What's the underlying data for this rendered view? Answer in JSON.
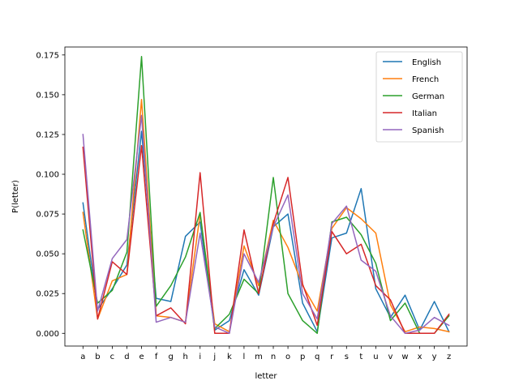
{
  "chart_data": {
    "type": "line",
    "title": "",
    "xlabel": "letter",
    "ylabel": "P(letter)",
    "categories": [
      "a",
      "b",
      "c",
      "d",
      "e",
      "f",
      "g",
      "h",
      "i",
      "j",
      "k",
      "l",
      "m",
      "n",
      "o",
      "p",
      "q",
      "r",
      "s",
      "t",
      "u",
      "v",
      "w",
      "x",
      "y",
      "z"
    ],
    "ylim": [
      -0.008,
      0.18
    ],
    "yticks": [
      0.0,
      0.025,
      0.05,
      0.075,
      0.1,
      0.125,
      0.15,
      0.175
    ],
    "ytick_labels": [
      "0.000",
      "0.025",
      "0.050",
      "0.075",
      "0.100",
      "0.125",
      "0.150",
      "0.175"
    ],
    "grid": false,
    "legend_position": "top-right",
    "series": [
      {
        "name": "English",
        "color": "#1f77b4",
        "values": [
          0.082,
          0.015,
          0.028,
          0.043,
          0.127,
          0.022,
          0.02,
          0.061,
          0.07,
          0.002,
          0.008,
          0.04,
          0.024,
          0.067,
          0.075,
          0.019,
          0.001,
          0.06,
          0.063,
          0.091,
          0.028,
          0.01,
          0.024,
          0.002,
          0.02,
          0.001
        ]
      },
      {
        "name": "French",
        "color": "#ff7f0e",
        "values": [
          0.076,
          0.009,
          0.033,
          0.037,
          0.147,
          0.011,
          0.01,
          0.007,
          0.075,
          0.006,
          0.001,
          0.055,
          0.03,
          0.071,
          0.054,
          0.03,
          0.014,
          0.066,
          0.079,
          0.072,
          0.063,
          0.018,
          0.001,
          0.004,
          0.003,
          0.001
        ]
      },
      {
        "name": "German",
        "color": "#2ca02c",
        "values": [
          0.065,
          0.019,
          0.027,
          0.051,
          0.174,
          0.017,
          0.03,
          0.048,
          0.076,
          0.003,
          0.012,
          0.034,
          0.025,
          0.098,
          0.025,
          0.008,
          0.0,
          0.07,
          0.073,
          0.062,
          0.044,
          0.008,
          0.019,
          0.0,
          0.0,
          0.011
        ]
      },
      {
        "name": "Italian",
        "color": "#d62728",
        "values": [
          0.117,
          0.009,
          0.045,
          0.037,
          0.118,
          0.011,
          0.016,
          0.006,
          0.101,
          0.0,
          0.0,
          0.065,
          0.025,
          0.069,
          0.098,
          0.031,
          0.005,
          0.064,
          0.05,
          0.056,
          0.03,
          0.021,
          0.0,
          0.0,
          0.0,
          0.012
        ]
      },
      {
        "name": "Spanish",
        "color": "#9467bd",
        "values": [
          0.125,
          0.014,
          0.047,
          0.059,
          0.137,
          0.007,
          0.01,
          0.007,
          0.063,
          0.004,
          0.0,
          0.05,
          0.032,
          0.067,
          0.087,
          0.025,
          0.009,
          0.069,
          0.08,
          0.046,
          0.039,
          0.011,
          0.0,
          0.002,
          0.01,
          0.005
        ]
      }
    ]
  }
}
